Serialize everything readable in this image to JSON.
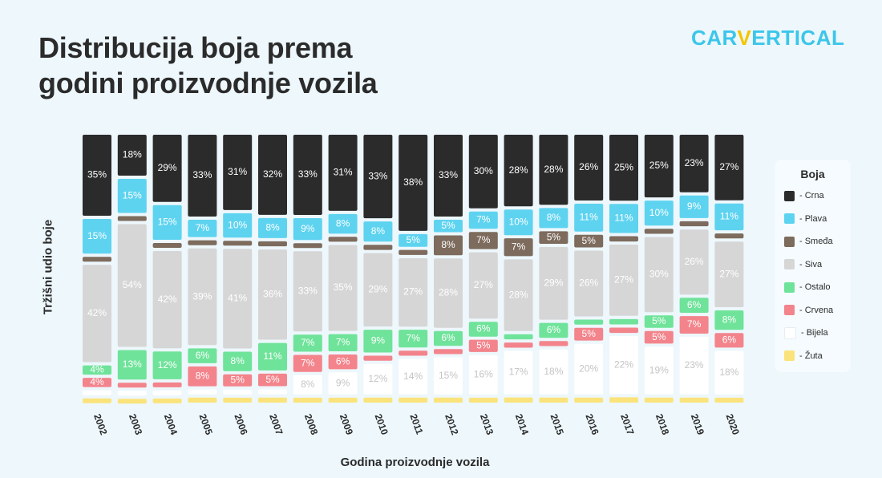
{
  "header": {
    "title_line1": "Distribucija boja prema",
    "title_line2": "godini proizvodnje vozila",
    "logo_pre": "CAR",
    "logo_v": "V",
    "logo_post": "ERTICAL"
  },
  "chart_data": {
    "type": "bar",
    "stacked": true,
    "title": "Distribucija boja prema godini proizvodnje vozila",
    "xlabel": "Godina proizvodnje vozila",
    "ylabel": "Tržišni udio boje",
    "legend_title": "Boja",
    "legend_position": "right",
    "categories": [
      "2002",
      "2003",
      "2004",
      "2005",
      "2006",
      "2007",
      "2008",
      "2009",
      "2010",
      "2011",
      "2012",
      "2013",
      "2014",
      "2015",
      "2016",
      "2017",
      "2018",
      "2019",
      "2020"
    ],
    "series": [
      {
        "name": "Crna",
        "legend_label": "- Crna",
        "color": "#2b2b2b",
        "label_color": "#ffffff",
        "values": [
          35,
          18,
          29,
          33,
          31,
          32,
          33,
          31,
          33,
          38,
          33,
          30,
          28,
          28,
          26,
          25,
          25,
          23,
          27
        ]
      },
      {
        "name": "Plava",
        "legend_label": "- Plava",
        "color": "#5ed3f0",
        "label_color": "#ffffff",
        "values": [
          15,
          15,
          15,
          7,
          10,
          8,
          9,
          8,
          8,
          5,
          5,
          7,
          10,
          8,
          11,
          11,
          10,
          9,
          11
        ]
      },
      {
        "name": "Smeđa",
        "legend_label": "- Smeđa",
        "color": "#7d6b5d",
        "label_color": "#ffffff",
        "values": [
          null,
          null,
          null,
          null,
          null,
          null,
          null,
          null,
          null,
          null,
          8,
          7,
          7,
          5,
          5,
          null,
          null,
          null,
          null
        ]
      },
      {
        "name": "Siva",
        "legend_label": "- Siva",
        "color": "#d6d6d6",
        "label_color": "#ffffff",
        "values": [
          42,
          54,
          42,
          39,
          41,
          36,
          33,
          35,
          29,
          27,
          28,
          27,
          28,
          29,
          26,
          27,
          30,
          26,
          27
        ]
      },
      {
        "name": "Ostalo",
        "legend_label": "- Ostalo",
        "color": "#6fe39a",
        "label_color": "#ffffff",
        "values": [
          4,
          13,
          12,
          6,
          8,
          11,
          7,
          7,
          9,
          7,
          6,
          6,
          null,
          6,
          null,
          null,
          5,
          6,
          8
        ]
      },
      {
        "name": "Crvena",
        "legend_label": "- Crvena",
        "color": "#f3848c",
        "label_color": "#ffffff",
        "values": [
          4,
          null,
          null,
          8,
          5,
          5,
          7,
          6,
          null,
          null,
          null,
          5,
          null,
          null,
          5,
          null,
          5,
          7,
          6
        ]
      },
      {
        "name": "Bijela",
        "legend_label": "- Bijela",
        "color": "#ffffff",
        "label_color": "#c4c4c4",
        "values": [
          null,
          null,
          null,
          null,
          null,
          null,
          8,
          9,
          12,
          14,
          15,
          16,
          17,
          18,
          20,
          22,
          19,
          23,
          18
        ]
      },
      {
        "name": "Žuta",
        "legend_label": "- Žuta",
        "color": "#fbe37c",
        "label_color": "#2b2b2b",
        "values": [
          null,
          null,
          null,
          null,
          null,
          null,
          null,
          null,
          null,
          null,
          null,
          null,
          null,
          null,
          null,
          null,
          null,
          null,
          null
        ]
      }
    ]
  }
}
